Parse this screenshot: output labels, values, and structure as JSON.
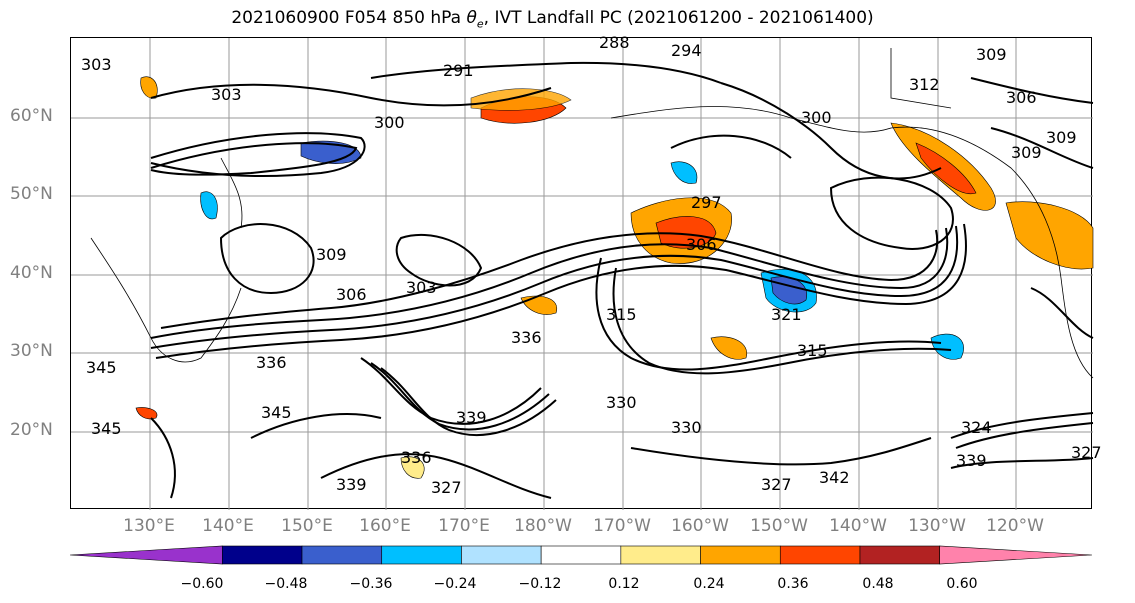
{
  "title": {
    "prefix": "2021060900 F054 850 hPa ",
    "theta_symbol": "θ",
    "theta_sub": "e",
    "suffix": ", IVT Landfall PC (2021061200 - 2021061400)"
  },
  "map": {
    "lat_labels": [
      "60°N",
      "50°N",
      "40°N",
      "30°N",
      "20°N"
    ],
    "lon_labels": [
      "130°E",
      "140°E",
      "150°E",
      "160°E",
      "170°E",
      "180°W",
      "170°W",
      "160°W",
      "150°W",
      "140°W",
      "130°W",
      "120°W"
    ],
    "contour_labels": [
      "303",
      "303",
      "300",
      "291",
      "288",
      "294",
      "309",
      "312",
      "306",
      "300",
      "309",
      "309",
      "297",
      "306",
      "309",
      "306",
      "303",
      "315",
      "321",
      "336",
      "336",
      "315",
      "345",
      "345",
      "339",
      "330",
      "330",
      "336",
      "339",
      "327",
      "342",
      "339",
      "327",
      "324",
      "327",
      "345"
    ]
  },
  "colorbar": {
    "ticks": [
      "−0.60",
      "−0.48",
      "−0.36",
      "−0.24",
      "−0.12",
      "0.12",
      "0.24",
      "0.36",
      "0.48",
      "0.60"
    ],
    "colors": [
      "#9932cc",
      "#00008b",
      "#3a5fcd",
      "#00bfff",
      "#b0e2ff",
      "#ffffff",
      "#ffec8b",
      "#ffa500",
      "#ff4500",
      "#b22222",
      "#ff82ab"
    ]
  }
}
